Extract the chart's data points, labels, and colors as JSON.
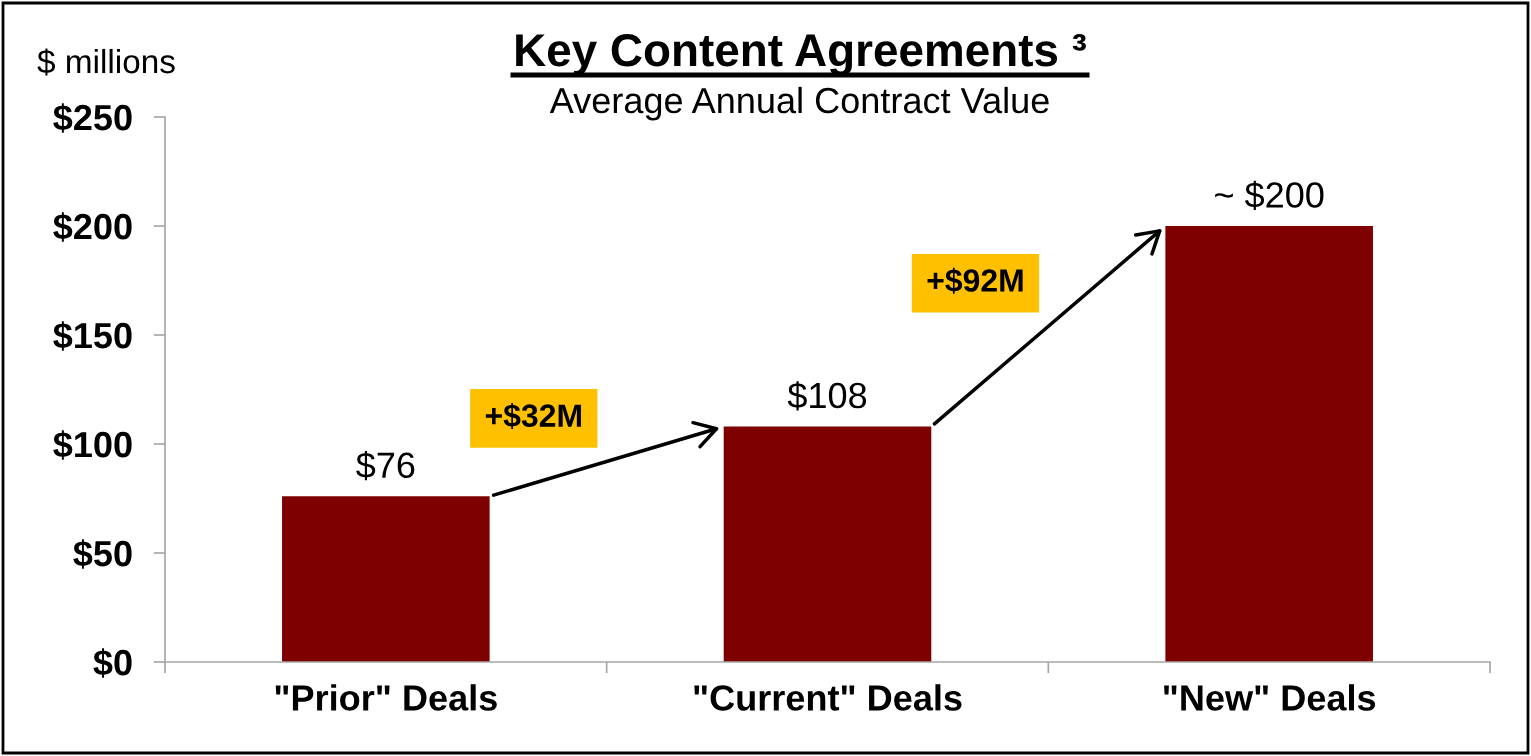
{
  "chart_data": {
    "type": "bar",
    "title": "Key Content Agreements ³",
    "subtitle": "Average Annual Contract Value",
    "ylabel": "$ millions",
    "categories": [
      "\"Prior\" Deals",
      "\"Current\" Deals",
      "\"New\" Deals"
    ],
    "values": [
      76,
      108,
      200
    ],
    "color": "#7f0000",
    "value_labels": [
      "$76",
      "$108",
      "~ $200"
    ],
    "ylim": [
      0,
      250
    ],
    "yticks": [
      {
        "value": 0,
        "label": "$0"
      },
      {
        "value": 50,
        "label": "$50"
      },
      {
        "value": 100,
        "label": "$100"
      },
      {
        "value": 150,
        "label": "$150"
      },
      {
        "value": 200,
        "label": "$200"
      },
      {
        "value": 250,
        "label": "$250"
      }
    ],
    "annotations": [
      "+$32M",
      "+$92M"
    ],
    "grid": false
  }
}
